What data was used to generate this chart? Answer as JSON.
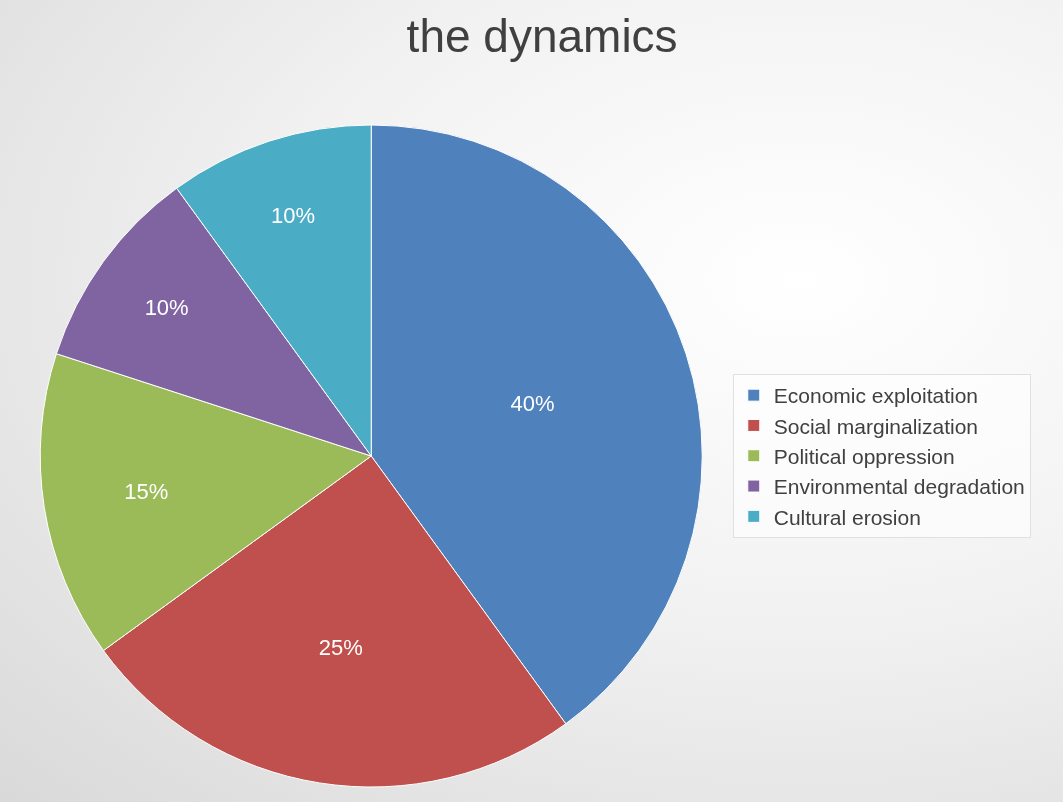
{
  "chart_data": {
    "type": "pie",
    "title": "the dynamics",
    "categories": [
      "Economic exploitation",
      "Social marginalization",
      "Political oppression",
      "Environmental degradation",
      "Cultural erosion"
    ],
    "values": [
      40,
      25,
      15,
      10,
      10
    ],
    "value_labels": [
      "40%",
      "25%",
      "15%",
      "10%",
      "10%"
    ],
    "colors": [
      "#4f81bd",
      "#c0504d",
      "#9bbb59",
      "#8064a2",
      "#4bacc6"
    ],
    "legend": "right"
  }
}
